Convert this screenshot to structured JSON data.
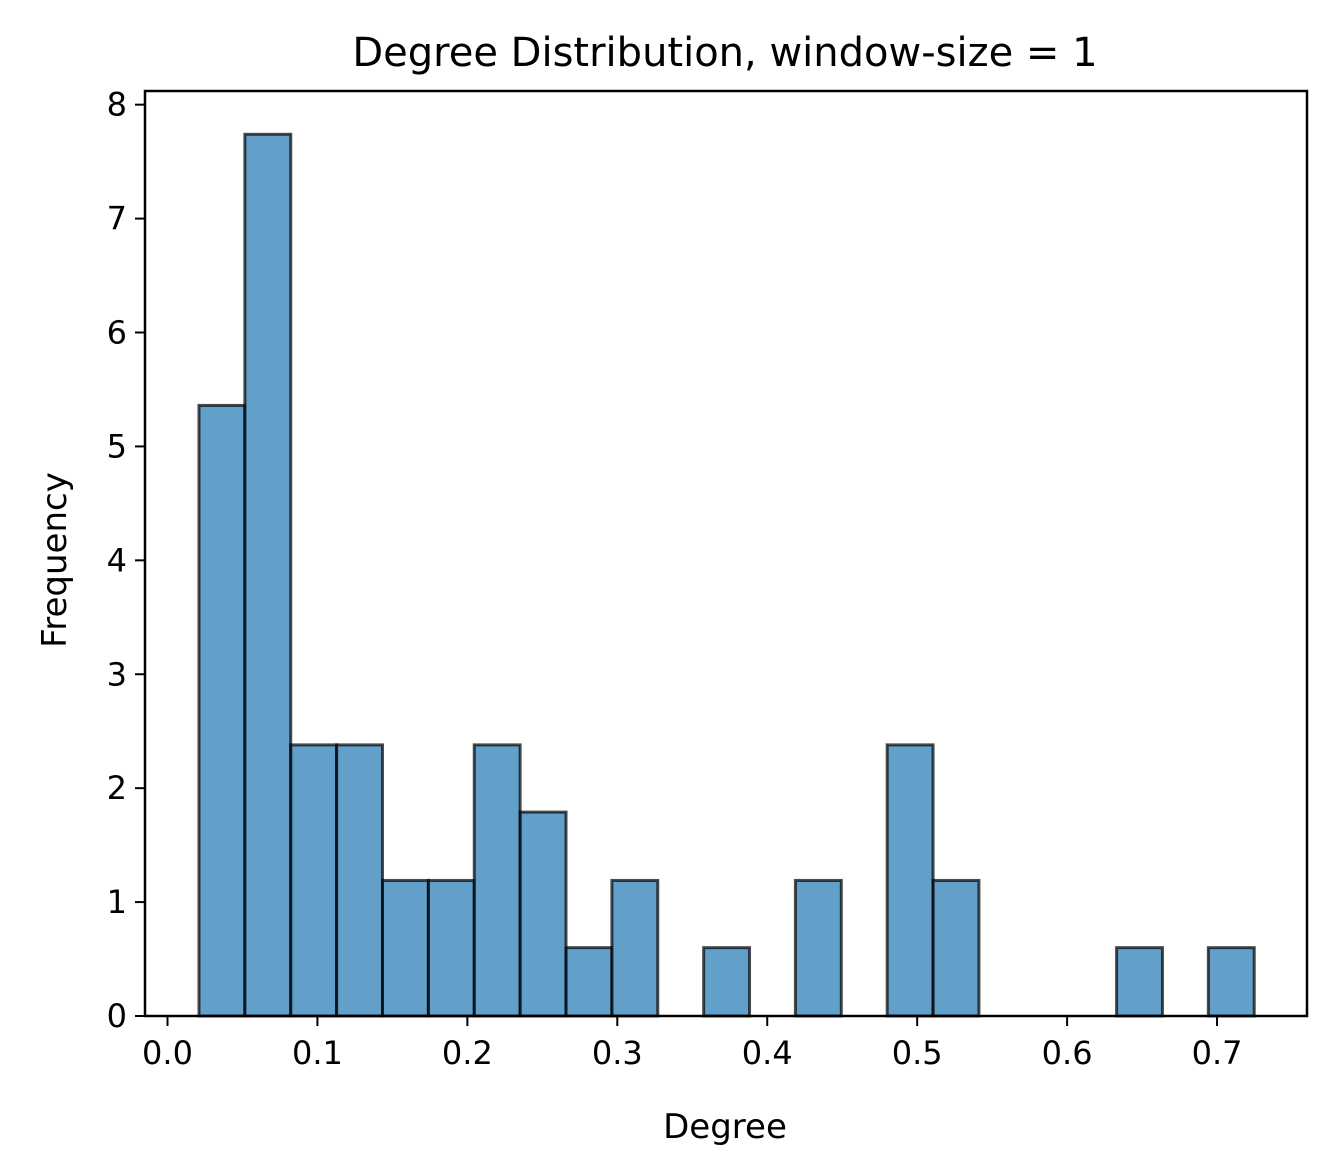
{
  "chart_data": {
    "type": "bar",
    "title": "Degree Distribution,  window-size = 1",
    "xlabel": "Degree",
    "ylabel": "Frequency",
    "xlim": [
      -0.015,
      0.76
    ],
    "ylim": [
      0,
      8.12
    ],
    "xticks": [
      {
        "value": 0.0,
        "label": "0.0"
      },
      {
        "value": 0.1,
        "label": "0.1"
      },
      {
        "value": 0.2,
        "label": "0.2"
      },
      {
        "value": 0.3,
        "label": "0.3"
      },
      {
        "value": 0.4,
        "label": "0.4"
      },
      {
        "value": 0.5,
        "label": "0.5"
      },
      {
        "value": 0.6,
        "label": "0.6"
      },
      {
        "value": 0.7,
        "label": "0.7"
      }
    ],
    "yticks": [
      {
        "value": 0,
        "label": "0"
      },
      {
        "value": 1,
        "label": "1"
      },
      {
        "value": 2,
        "label": "2"
      },
      {
        "value": 3,
        "label": "3"
      },
      {
        "value": 4,
        "label": "4"
      },
      {
        "value": 5,
        "label": "5"
      },
      {
        "value": 6,
        "label": "6"
      },
      {
        "value": 7,
        "label": "7"
      },
      {
        "value": 8,
        "label": "8"
      }
    ],
    "bin_start": 0.021,
    "bin_width": 0.0306,
    "values": [
      5.36,
      7.74,
      2.38,
      2.38,
      1.19,
      1.19,
      2.38,
      1.79,
      0.6,
      1.19,
      0,
      0.6,
      0,
      1.19,
      0,
      2.38,
      1.19,
      0,
      0,
      0,
      0.6,
      0,
      0.6
    ],
    "bar_color": "#1f77b4",
    "grid": false
  }
}
